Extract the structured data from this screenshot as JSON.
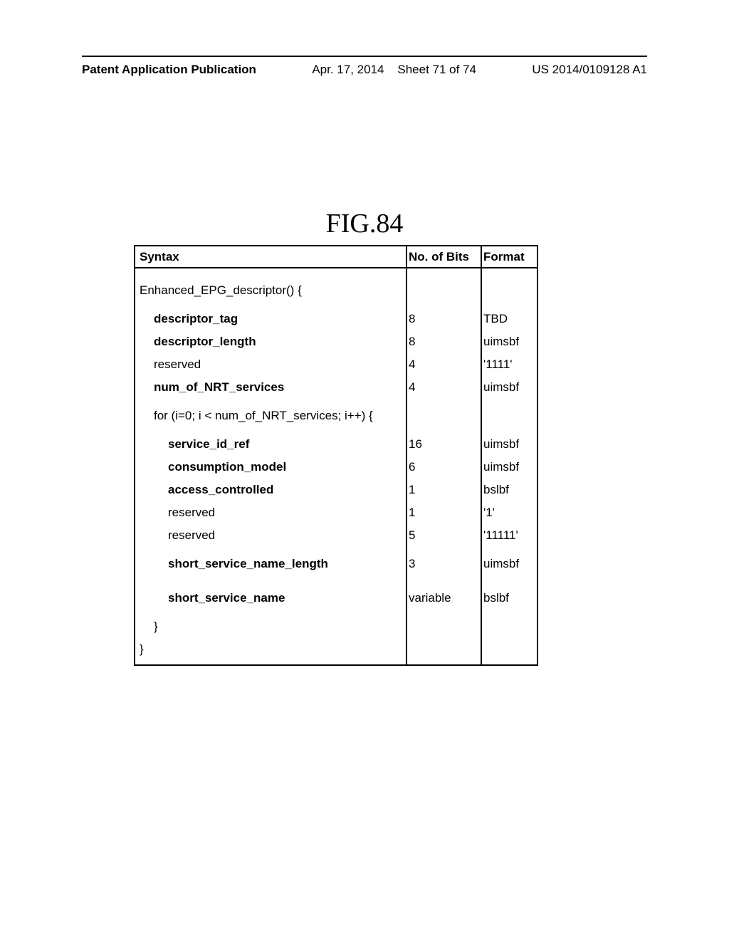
{
  "header": {
    "publication_label": "Patent Application Publication",
    "date": "Apr. 17, 2014",
    "sheet": "Sheet 71 of 74",
    "pub_number": "US 2014/0109128 A1"
  },
  "figure": {
    "title": "FIG.84"
  },
  "table": {
    "columns": {
      "syntax": "Syntax",
      "bits": "No. of Bits",
      "format": "Format"
    },
    "rows": [
      {
        "syntax": "Enhanced_EPG_descriptor() {",
        "bits": "",
        "format": "",
        "bold": false,
        "indent": 0,
        "gap": true
      },
      {
        "syntax": "descriptor_tag",
        "bits": "8",
        "format": "TBD",
        "bold": true,
        "indent": 1,
        "gap": false
      },
      {
        "syntax": "descriptor_length",
        "bits": "8",
        "format": "uimsbf",
        "bold": true,
        "indent": 1,
        "gap": false
      },
      {
        "syntax": "reserved",
        "bits": "4",
        "format": "'1111'",
        "bold": false,
        "indent": 1,
        "gap": false
      },
      {
        "syntax": "num_of_NRT_services",
        "bits": "4",
        "format": "uimsbf",
        "bold": true,
        "indent": 1,
        "gap": false
      },
      {
        "syntax": "for (i=0; i < num_of_NRT_services; i++) {",
        "bits": "",
        "format": "",
        "bold": false,
        "indent": 1,
        "gap": true
      },
      {
        "syntax": "service_id_ref",
        "bits": "16",
        "format": "uimsbf",
        "bold": true,
        "indent": 2,
        "gap": false
      },
      {
        "syntax": "consumption_model",
        "bits": "6",
        "format": "uimsbf",
        "bold": true,
        "indent": 2,
        "gap": false
      },
      {
        "syntax": "access_controlled",
        "bits": "1",
        "format": "bslbf",
        "bold": true,
        "indent": 2,
        "gap": false
      },
      {
        "syntax": "reserved",
        "bits": "1",
        "format": "'1'",
        "bold": false,
        "indent": 2,
        "gap": false
      },
      {
        "syntax": "reserved",
        "bits": "5",
        "format": "'11111'",
        "bold": false,
        "indent": 2,
        "gap": false
      },
      {
        "syntax": "short_service_name_length",
        "bits": "3",
        "format": "uimsbf",
        "bold": true,
        "indent": 2,
        "gap": true
      },
      {
        "syntax": "short_service_name",
        "bits": "variable",
        "format": "bslbf",
        "bold": true,
        "indent": 2,
        "gap": true
      },
      {
        "syntax": "}",
        "bits": "",
        "format": "",
        "bold": false,
        "indent": 1,
        "gap": false
      },
      {
        "syntax": "}",
        "bits": "",
        "format": "",
        "bold": false,
        "indent": 0,
        "gap": false
      }
    ]
  }
}
